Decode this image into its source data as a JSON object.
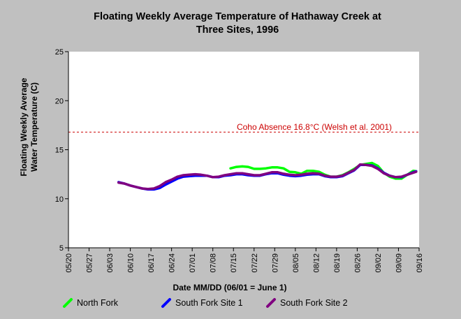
{
  "chart_data": {
    "type": "line",
    "title_line1": "Floating Weekly Average Temperature of Hathaway Creek at",
    "title_line2": "Three Sites, 1996",
    "xlabel": "Date MM/DD (06/01 = June 1)",
    "ylabel_line1": "Floating Weekly Average",
    "ylabel_line2": "Water Temperature (C)",
    "ylim": [
      5,
      25
    ],
    "yticks": [
      5,
      10,
      15,
      20,
      25
    ],
    "x_tick_labels": [
      "05/20",
      "05/27",
      "06/03",
      "06/10",
      "06/17",
      "06/24",
      "07/01",
      "07/08",
      "07/15",
      "07/22",
      "07/29",
      "08/05",
      "08/12",
      "08/19",
      "08/26",
      "09/02",
      "09/09",
      "09/16"
    ],
    "x_start": "05/20",
    "x_end": "09/16",
    "grid": false,
    "legend_position": "bottom",
    "threshold": {
      "value": 16.8,
      "label": "Coho Absence 16.8°C (Welsh et al. 2001)",
      "color": "#cc0000"
    },
    "series": [
      {
        "name": "North Fork",
        "color": "#00ff00",
        "points": [
          [
            "07/14",
            13.1
          ],
          [
            "07/16",
            13.25
          ],
          [
            "07/18",
            13.3
          ],
          [
            "07/20",
            13.25
          ],
          [
            "07/22",
            13.05
          ],
          [
            "07/24",
            13.05
          ],
          [
            "07/26",
            13.1
          ],
          [
            "07/28",
            13.2
          ],
          [
            "07/30",
            13.2
          ],
          [
            "08/01",
            13.1
          ],
          [
            "08/03",
            12.75
          ],
          [
            "08/05",
            12.7
          ],
          [
            "08/07",
            12.55
          ],
          [
            "08/09",
            12.85
          ],
          [
            "08/11",
            12.85
          ],
          [
            "08/13",
            12.75
          ],
          [
            "08/15",
            12.45
          ],
          [
            "08/17",
            12.25
          ],
          [
            "08/19",
            12.25
          ],
          [
            "08/21",
            12.4
          ],
          [
            "08/23",
            12.7
          ],
          [
            "08/25",
            13.05
          ],
          [
            "08/27",
            13.45
          ],
          [
            "08/29",
            13.55
          ],
          [
            "08/31",
            13.65
          ],
          [
            "09/02",
            13.35
          ],
          [
            "09/04",
            12.65
          ],
          [
            "09/06",
            12.25
          ],
          [
            "09/08",
            12.05
          ],
          [
            "09/10",
            12.05
          ],
          [
            "09/12",
            12.45
          ],
          [
            "09/14",
            12.85
          ],
          [
            "09/15",
            12.8
          ]
        ]
      },
      {
        "name": "South Fork Site 1",
        "color": "#0000ff",
        "points": [
          [
            "06/06",
            11.7
          ],
          [
            "06/08",
            11.55
          ],
          [
            "06/10",
            11.35
          ],
          [
            "06/12",
            11.2
          ],
          [
            "06/14",
            11.05
          ],
          [
            "06/16",
            10.95
          ],
          [
            "06/18",
            10.95
          ],
          [
            "06/20",
            11.1
          ],
          [
            "06/22",
            11.45
          ],
          [
            "06/24",
            11.75
          ],
          [
            "06/26",
            12.05
          ],
          [
            "06/28",
            12.25
          ],
          [
            "06/30",
            12.3
          ],
          [
            "07/02",
            12.35
          ],
          [
            "07/04",
            12.35
          ],
          [
            "07/06",
            12.35
          ],
          [
            "07/08",
            12.2
          ],
          [
            "07/10",
            12.2
          ],
          [
            "07/12",
            12.35
          ],
          [
            "07/14",
            12.4
          ],
          [
            "07/16",
            12.5
          ],
          [
            "07/18",
            12.5
          ],
          [
            "07/20",
            12.4
          ],
          [
            "07/22",
            12.35
          ],
          [
            "07/24",
            12.35
          ],
          [
            "07/26",
            12.5
          ],
          [
            "07/28",
            12.6
          ],
          [
            "07/30",
            12.6
          ],
          [
            "08/01",
            12.45
          ],
          [
            "08/03",
            12.35
          ],
          [
            "08/05",
            12.3
          ],
          [
            "08/07",
            12.35
          ],
          [
            "08/09",
            12.45
          ],
          [
            "08/11",
            12.5
          ],
          [
            "08/13",
            12.5
          ],
          [
            "08/15",
            12.3
          ],
          [
            "08/17",
            12.2
          ],
          [
            "08/19",
            12.2
          ],
          [
            "08/21",
            12.3
          ],
          [
            "08/23",
            12.6
          ],
          [
            "08/25",
            12.9
          ],
          [
            "08/27",
            13.45
          ],
          [
            "08/29",
            13.45
          ],
          [
            "08/31",
            13.4
          ],
          [
            "09/02",
            13.1
          ],
          [
            "09/04",
            12.65
          ],
          [
            "09/06",
            12.35
          ],
          [
            "09/08",
            12.2
          ],
          [
            "09/10",
            12.2
          ],
          [
            "09/12",
            12.45
          ],
          [
            "09/14",
            12.7
          ],
          [
            "09/15",
            12.8
          ]
        ]
      },
      {
        "name": "South Fork Site 2",
        "color": "#800080",
        "points": [
          [
            "06/06",
            11.65
          ],
          [
            "06/08",
            11.55
          ],
          [
            "06/10",
            11.35
          ],
          [
            "06/12",
            11.2
          ],
          [
            "06/14",
            11.05
          ],
          [
            "06/16",
            11.0
          ],
          [
            "06/18",
            11.05
          ],
          [
            "06/20",
            11.3
          ],
          [
            "06/22",
            11.7
          ],
          [
            "06/24",
            11.95
          ],
          [
            "06/26",
            12.25
          ],
          [
            "06/28",
            12.4
          ],
          [
            "06/30",
            12.45
          ],
          [
            "07/02",
            12.5
          ],
          [
            "07/04",
            12.45
          ],
          [
            "07/06",
            12.35
          ],
          [
            "07/08",
            12.2
          ],
          [
            "07/10",
            12.25
          ],
          [
            "07/12",
            12.4
          ],
          [
            "07/14",
            12.5
          ],
          [
            "07/16",
            12.6
          ],
          [
            "07/18",
            12.6
          ],
          [
            "07/20",
            12.5
          ],
          [
            "07/22",
            12.4
          ],
          [
            "07/24",
            12.4
          ],
          [
            "07/26",
            12.55
          ],
          [
            "07/28",
            12.7
          ],
          [
            "07/30",
            12.7
          ],
          [
            "08/01",
            12.55
          ],
          [
            "08/03",
            12.45
          ],
          [
            "08/05",
            12.4
          ],
          [
            "08/07",
            12.45
          ],
          [
            "08/09",
            12.55
          ],
          [
            "08/11",
            12.6
          ],
          [
            "08/13",
            12.55
          ],
          [
            "08/15",
            12.35
          ],
          [
            "08/17",
            12.25
          ],
          [
            "08/19",
            12.25
          ],
          [
            "08/21",
            12.35
          ],
          [
            "08/23",
            12.65
          ],
          [
            "08/25",
            12.95
          ],
          [
            "08/27",
            13.5
          ],
          [
            "08/29",
            13.45
          ],
          [
            "08/31",
            13.35
          ],
          [
            "09/02",
            13.05
          ],
          [
            "09/04",
            12.6
          ],
          [
            "09/06",
            12.35
          ],
          [
            "09/08",
            12.2
          ],
          [
            "09/10",
            12.25
          ],
          [
            "09/12",
            12.45
          ],
          [
            "09/14",
            12.65
          ],
          [
            "09/15",
            12.75
          ]
        ]
      }
    ]
  }
}
